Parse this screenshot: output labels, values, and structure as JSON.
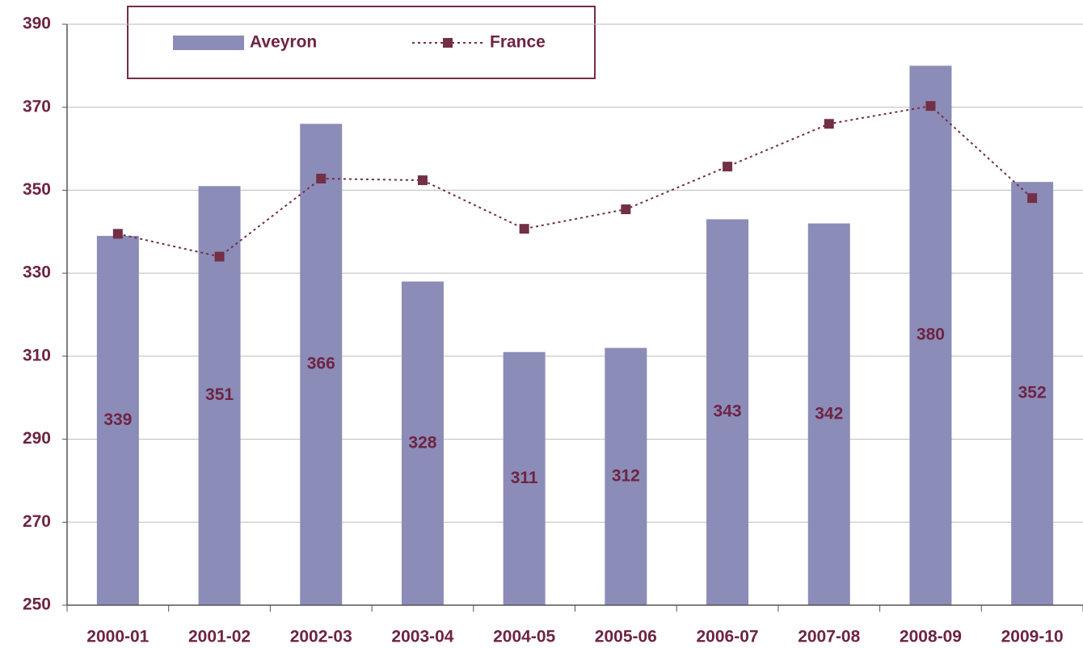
{
  "chart_data": {
    "type": "bar-line",
    "categories": [
      "2000-01",
      "2001-02",
      "2002-03",
      "2003-04",
      "2004-05",
      "2005-06",
      "2006-07",
      "2007-08",
      "2008-09",
      "2009-10"
    ],
    "series": [
      {
        "name": "Aveyron",
        "type": "bar",
        "color": "#8c8cb8",
        "values": [
          339,
          351,
          366,
          328,
          311,
          312,
          343,
          342,
          380,
          352
        ]
      },
      {
        "name": "France",
        "type": "line",
        "color": "#722f45",
        "values": [
          339.5,
          334,
          352.8,
          352.4,
          340.7,
          345.4,
          355.7,
          366,
          370.3,
          348.1
        ]
      }
    ],
    "ylim": [
      250,
      390
    ],
    "yticks": [
      250,
      270,
      290,
      310,
      330,
      350,
      370,
      390
    ],
    "grid": true,
    "legend": "top"
  }
}
